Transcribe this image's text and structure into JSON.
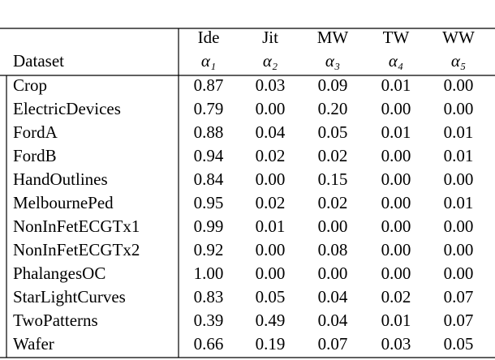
{
  "table": {
    "header": [
      [
        "",
        "Ide",
        "Jit",
        "MW",
        "TW",
        "WW"
      ],
      [
        "Dataset",
        "α₁",
        "α₂",
        "α₃",
        "α₄",
        "α₅"
      ]
    ],
    "rows": [
      [
        "Crop",
        "0.87",
        "0.03",
        "0.09",
        "0.01",
        "0.00"
      ],
      [
        "ElectricDevices",
        "0.79",
        "0.00",
        "0.20",
        "0.00",
        "0.00"
      ],
      [
        "FordA",
        "0.88",
        "0.04",
        "0.05",
        "0.01",
        "0.01"
      ],
      [
        "FordB",
        "0.94",
        "0.02",
        "0.02",
        "0.00",
        "0.01"
      ],
      [
        "HandOutlines",
        "0.84",
        "0.00",
        "0.15",
        "0.00",
        "0.00"
      ],
      [
        "MelbournePed",
        "0.95",
        "0.02",
        "0.02",
        "0.00",
        "0.01"
      ],
      [
        "NonInFetECGTx1",
        "0.99",
        "0.01",
        "0.00",
        "0.00",
        "0.00"
      ],
      [
        "NonInFetECGTx2",
        "0.92",
        "0.00",
        "0.08",
        "0.00",
        "0.00"
      ],
      [
        "PhalangesOC",
        "1.00",
        "0.00",
        "0.00",
        "0.00",
        "0.00"
      ],
      [
        "StarLightCurves",
        "0.83",
        "0.05",
        "0.04",
        "0.02",
        "0.07"
      ],
      [
        "TwoPatterns",
        "0.39",
        "0.49",
        "0.04",
        "0.01",
        "0.07"
      ],
      [
        "Wafer",
        "0.66",
        "0.19",
        "0.07",
        "0.03",
        "0.05"
      ]
    ]
  }
}
